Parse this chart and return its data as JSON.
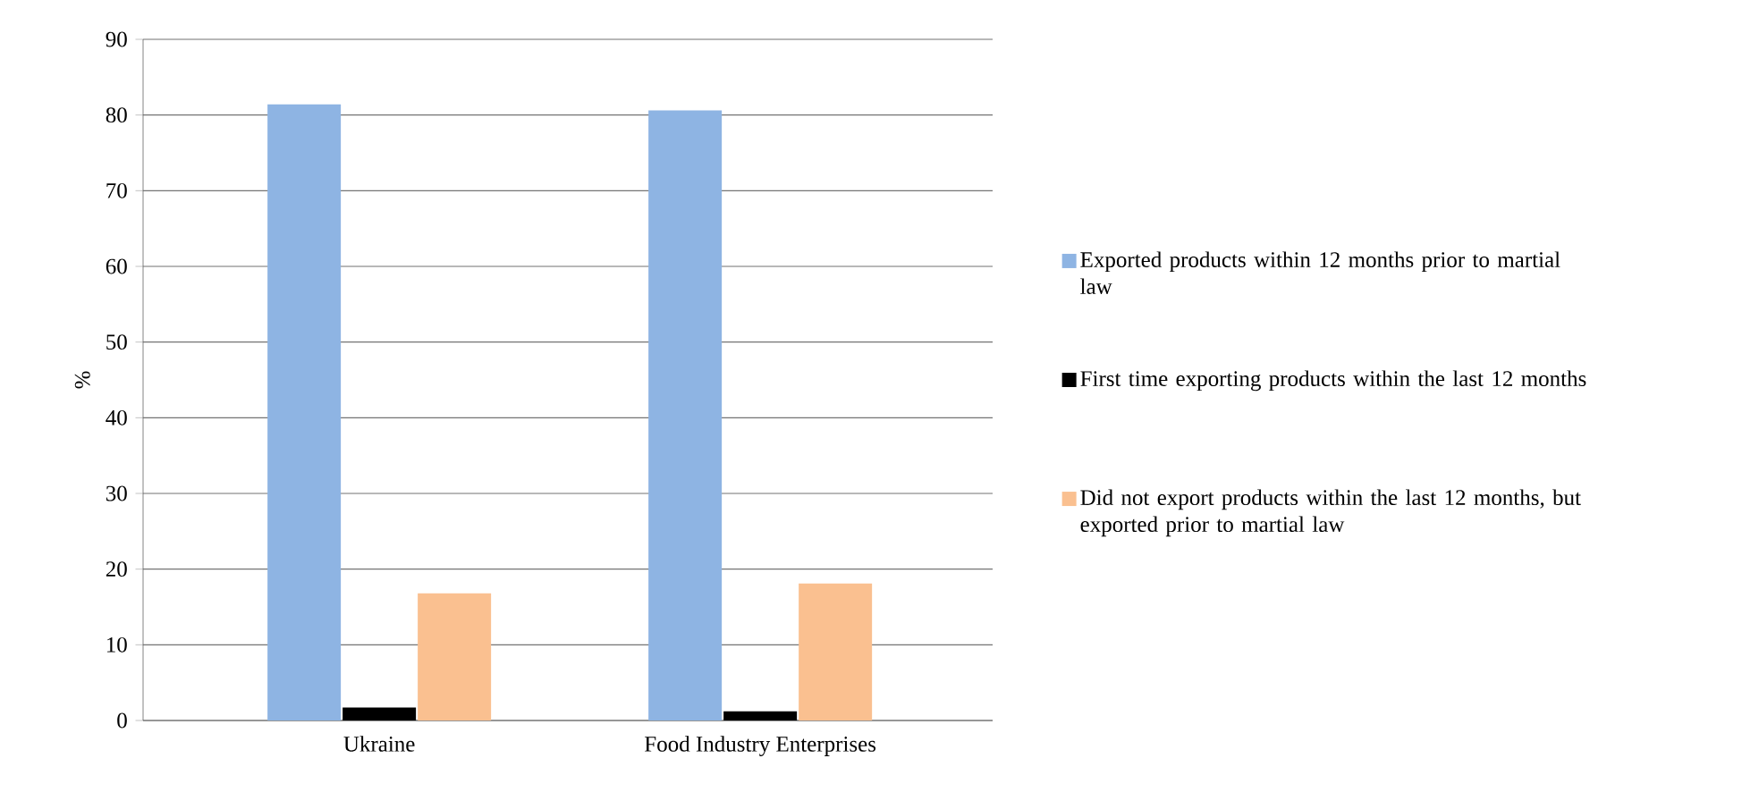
{
  "chart_data": {
    "type": "bar",
    "ylabel": "%",
    "categories": [
      "Ukraine",
      "Food Industry Enterprises"
    ],
    "series": [
      {
        "name": "Exported products within 12 months prior to martial law",
        "color": "#8eb4e3",
        "values": [
          81.4,
          80.6
        ]
      },
      {
        "name": "First time exporting products within the last 12 months",
        "color": "#000000",
        "values": [
          1.7,
          1.2
        ]
      },
      {
        "name": "Did not export products within the last 12 months, but exported prior to martial law",
        "color": "#fac090",
        "values": [
          16.8,
          18.1
        ]
      }
    ],
    "ylim": [
      0,
      90
    ],
    "yticks": [
      0,
      10,
      20,
      30,
      40,
      50,
      60,
      70,
      80,
      90
    ],
    "grid": "y",
    "legend": "right"
  }
}
